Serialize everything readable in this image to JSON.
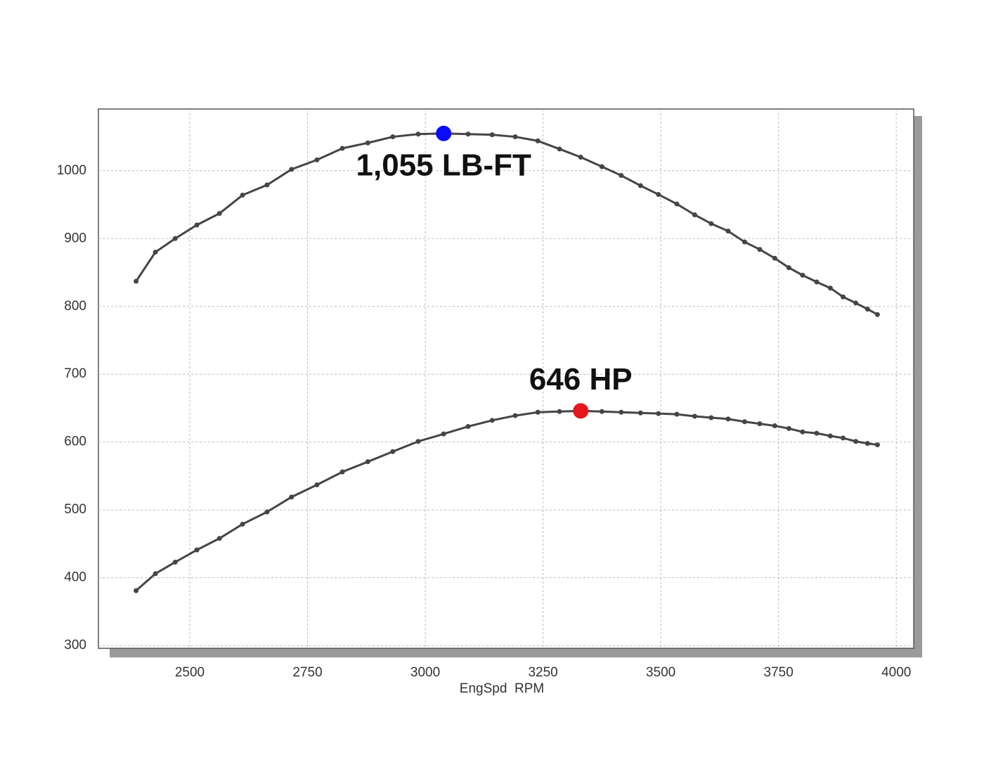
{
  "chart_data": {
    "type": "line",
    "x_label": "EngSpd  RPM",
    "x": [
      2386,
      2427,
      2469,
      2515,
      2563,
      2612,
      2664,
      2716,
      2770,
      2824,
      2878,
      2931,
      2985,
      3039,
      3091,
      3142,
      3191,
      3239,
      3285,
      3330,
      3375,
      3416,
      3457,
      3495,
      3534,
      3572,
      3607,
      3643,
      3678,
      3710,
      3742,
      3772,
      3801,
      3831,
      3860,
      3887,
      3914,
      3939,
      3960
    ],
    "series": [
      {
        "color": "#454545",
        "values": [
          837,
          880,
          900,
          920,
          937,
          964,
          979,
          1002,
          1016,
          1033,
          1041,
          1050,
          1054,
          1055,
          1054,
          1053,
          1050,
          1044,
          1032,
          1020,
          1006,
          993,
          978,
          965,
          951,
          935,
          922,
          911,
          895,
          884,
          871,
          857,
          846,
          836,
          827,
          814,
          805,
          796,
          788
        ]
      },
      {
        "color": "#454545",
        "values": [
          381,
          406,
          423,
          441,
          458,
          479,
          497,
          519,
          537,
          556,
          571,
          586,
          601,
          612,
          623,
          632,
          639,
          644,
          645,
          646,
          645,
          644,
          643,
          642,
          641,
          638,
          636,
          634,
          630,
          627,
          624,
          620,
          615,
          613,
          609,
          606,
          601,
          598,
          596
        ]
      }
    ],
    "annotations": [
      {
        "text": "1,055 LB-FT",
        "x": 3039,
        "y": 1055,
        "color": "#0a0aff"
      },
      {
        "text": "646 HP",
        "x": 3330,
        "y": 646,
        "color": "#e8141e"
      }
    ],
    "xlim": [
      2306,
      4037
    ],
    "ylim": [
      296,
      1091
    ],
    "xticks": [
      2500,
      2750,
      3000,
      3250,
      3500,
      3750,
      4000
    ],
    "yticks": [
      300,
      400,
      500,
      600,
      700,
      800,
      900,
      1000
    ],
    "grid": true
  }
}
